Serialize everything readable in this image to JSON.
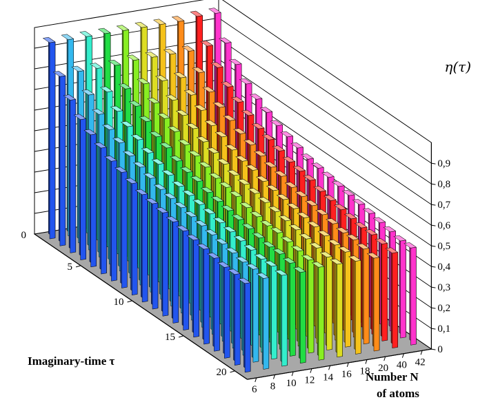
{
  "chart_data": {
    "type": "bar3d",
    "title": "",
    "zlabel": "η(τ)",
    "xlabel": "Imaginary-time τ",
    "ylabel_line1": "Number N",
    "ylabel_line2": "of atoms",
    "z_ticks": [
      "0",
      "0,1",
      "0,2",
      "0,3",
      "0,4",
      "0,5",
      "0,6",
      "0,7",
      "0,8",
      "0,9"
    ],
    "z_range": [
      0,
      1.0
    ],
    "tau_ticks": [
      {
        "value": 0,
        "label": "0"
      },
      {
        "value": 5,
        "label": "5"
      },
      {
        "value": 10,
        "label": "10"
      },
      {
        "value": 15,
        "label": "15"
      },
      {
        "value": 20,
        "label": "20"
      }
    ],
    "n_ticks": [
      "6",
      "8",
      "10",
      "12",
      "14",
      "16",
      "18",
      "20",
      "40",
      "42"
    ],
    "tau_count": 20,
    "series_note": "eta(tau) per N, read off the bar heights",
    "series": [
      {
        "N": "6",
        "color": "#2255ee",
        "values": [
          0.95,
          0.82,
          0.74,
          0.68,
          0.64,
          0.61,
          0.58,
          0.56,
          0.54,
          0.52,
          0.51,
          0.5,
          0.49,
          0.48,
          0.47,
          0.46,
          0.45,
          0.44,
          0.44,
          0.43
        ]
      },
      {
        "N": "8",
        "color": "#33b8ee",
        "values": [
          0.95,
          0.83,
          0.75,
          0.69,
          0.65,
          0.62,
          0.59,
          0.57,
          0.55,
          0.53,
          0.52,
          0.51,
          0.5,
          0.49,
          0.48,
          0.47,
          0.46,
          0.45,
          0.45,
          0.44
        ]
      },
      {
        "N": "10",
        "color": "#33eecc",
        "values": [
          0.95,
          0.83,
          0.75,
          0.69,
          0.65,
          0.62,
          0.59,
          0.57,
          0.55,
          0.53,
          0.52,
          0.51,
          0.5,
          0.49,
          0.48,
          0.47,
          0.46,
          0.45,
          0.45,
          0.44
        ]
      },
      {
        "N": "12",
        "color": "#22dd44",
        "values": [
          0.95,
          0.83,
          0.75,
          0.7,
          0.66,
          0.62,
          0.6,
          0.57,
          0.55,
          0.54,
          0.52,
          0.51,
          0.5,
          0.49,
          0.48,
          0.47,
          0.46,
          0.46,
          0.45,
          0.44
        ]
      },
      {
        "N": "14",
        "color": "#88ee22",
        "values": [
          0.95,
          0.84,
          0.76,
          0.7,
          0.66,
          0.63,
          0.6,
          0.58,
          0.56,
          0.54,
          0.53,
          0.52,
          0.5,
          0.49,
          0.48,
          0.48,
          0.47,
          0.46,
          0.45,
          0.45
        ]
      },
      {
        "N": "16",
        "color": "#dddd22",
        "values": [
          0.95,
          0.84,
          0.76,
          0.7,
          0.66,
          0.63,
          0.6,
          0.58,
          0.56,
          0.54,
          0.53,
          0.52,
          0.51,
          0.5,
          0.49,
          0.48,
          0.47,
          0.46,
          0.45,
          0.45
        ]
      },
      {
        "N": "18",
        "color": "#f5c21b",
        "values": [
          0.95,
          0.84,
          0.76,
          0.71,
          0.67,
          0.63,
          0.61,
          0.58,
          0.56,
          0.55,
          0.53,
          0.52,
          0.51,
          0.5,
          0.49,
          0.48,
          0.47,
          0.46,
          0.46,
          0.45
        ]
      },
      {
        "N": "20",
        "color": "#ff8c1a",
        "values": [
          0.95,
          0.84,
          0.77,
          0.71,
          0.67,
          0.64,
          0.61,
          0.59,
          0.57,
          0.55,
          0.54,
          0.52,
          0.51,
          0.5,
          0.49,
          0.48,
          0.47,
          0.47,
          0.46,
          0.45
        ]
      },
      {
        "N": "40",
        "color": "#ff2020",
        "values": [
          0.96,
          0.85,
          0.78,
          0.72,
          0.68,
          0.65,
          0.62,
          0.6,
          0.58,
          0.56,
          0.55,
          0.54,
          0.52,
          0.51,
          0.5,
          0.49,
          0.48,
          0.48,
          0.47,
          0.46
        ]
      },
      {
        "N": "42",
        "color": "#ff33cc",
        "values": [
          0.96,
          0.85,
          0.78,
          0.72,
          0.68,
          0.65,
          0.62,
          0.6,
          0.58,
          0.56,
          0.55,
          0.54,
          0.53,
          0.52,
          0.51,
          0.5,
          0.49,
          0.48,
          0.47,
          0.47
        ]
      }
    ],
    "colors": {
      "floor": "#a8a8a8",
      "walls": "#ffffff",
      "grid": "#000000"
    },
    "grid": true
  }
}
